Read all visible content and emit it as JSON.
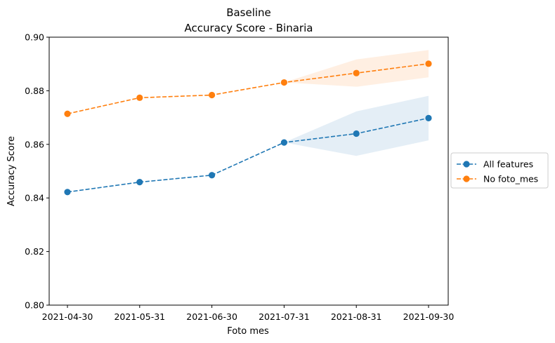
{
  "chart_data": {
    "type": "line",
    "title": "Baseline",
    "subtitle": "Accuracy Score - Binaria",
    "xlabel": "Foto mes",
    "ylabel": "Accuracy Score",
    "categories": [
      "2021-04-30",
      "2021-05-31",
      "2021-06-30",
      "2021-07-31",
      "2021-08-31",
      "2021-09-30"
    ],
    "ylim": [
      0.8,
      0.9
    ],
    "yticks": [
      "0.80",
      "0.82",
      "0.84",
      "0.86",
      "0.88",
      "0.90"
    ],
    "grid": false,
    "legend_position": "right",
    "series": [
      {
        "name": "All features",
        "color": "#1f77b4",
        "values": [
          0.8422,
          0.8459,
          0.8485,
          0.8607,
          0.864,
          0.8698
        ],
        "band_lower": [
          null,
          null,
          null,
          0.8607,
          0.8557,
          0.8615
        ],
        "band_upper": [
          null,
          null,
          null,
          0.8607,
          0.8723,
          0.8781
        ]
      },
      {
        "name": "No foto_mes",
        "color": "#ff7f0e",
        "values": [
          0.8714,
          0.8774,
          0.8784,
          0.8831,
          0.8866,
          0.8901
        ],
        "band_lower": [
          null,
          null,
          null,
          0.8831,
          0.8815,
          0.885
        ],
        "band_upper": [
          null,
          null,
          null,
          0.8831,
          0.8917,
          0.8952
        ]
      }
    ]
  }
}
